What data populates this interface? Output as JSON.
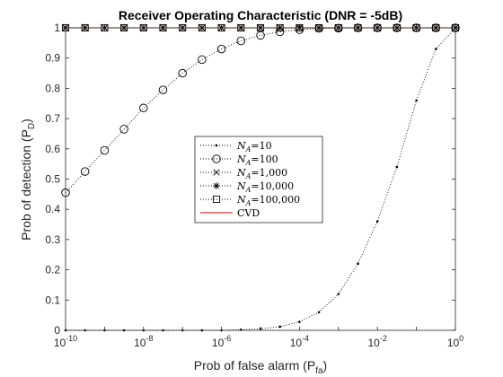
{
  "chart_data": {
    "type": "line",
    "title": "Receiver Operating Characteristic (DNR = -5dB)",
    "xlabel": "Prob of false alarm (P",
    "xlabel_sub": "fa",
    "xlabel_close": ")",
    "ylabel": "Prob of detection (P",
    "ylabel_sub": "D",
    "ylabel_close": ")",
    "xscale": "log",
    "xlim": [
      1e-10,
      1
    ],
    "ylim": [
      0,
      1
    ],
    "grid": false,
    "legend_position": "center",
    "x_tick_labels": [
      {
        "base": "10",
        "exp": "-10",
        "value": 1e-10
      },
      {
        "base": "10",
        "exp": "-8",
        "value": 1e-08
      },
      {
        "base": "10",
        "exp": "-6",
        "value": 1e-06
      },
      {
        "base": "10",
        "exp": "-4",
        "value": 0.0001
      },
      {
        "base": "10",
        "exp": "-2",
        "value": 0.01
      },
      {
        "base": "10",
        "exp": "0",
        "value": 1
      }
    ],
    "y_ticks": [
      "0",
      "0.1",
      "0.2",
      "0.3",
      "0.4",
      "0.5",
      "0.6",
      "0.7",
      "0.8",
      "0.9",
      "1"
    ],
    "series": [
      {
        "name_var": "N",
        "name_sub": "A",
        "name_value": "=10",
        "marker": "dot",
        "line": "dotted",
        "color": "#000000",
        "x": [
          1e-10,
          3.16e-10,
          1e-09,
          3.16e-09,
          1e-08,
          3.16e-08,
          1e-07,
          3.16e-07,
          1e-06,
          3.16e-06,
          1e-05,
          3.16e-05,
          0.0001,
          0.000316,
          0.001,
          0.00316,
          0.01,
          0.0316,
          0.1,
          0.316,
          1
        ],
        "y": [
          0.0,
          0.0,
          0.0,
          0.0,
          0.0,
          0.0,
          0.0,
          0.0,
          0.0,
          0.002,
          0.005,
          0.012,
          0.028,
          0.06,
          0.12,
          0.22,
          0.36,
          0.54,
          0.76,
          0.93,
          1.0
        ]
      },
      {
        "name_var": "N",
        "name_sub": "A",
        "name_value": "=100",
        "marker": "circle",
        "line": "dotted",
        "color": "#000000",
        "x": [
          1e-10,
          3.16e-10,
          1e-09,
          3.16e-09,
          1e-08,
          3.16e-08,
          1e-07,
          3.16e-07,
          1e-06,
          3.16e-06,
          1e-05,
          3.16e-05,
          0.0001,
          0.000316,
          0.001,
          0.00316,
          0.01,
          0.0316,
          0.1,
          0.316,
          1
        ],
        "y": [
          0.455,
          0.525,
          0.595,
          0.665,
          0.735,
          0.795,
          0.85,
          0.895,
          0.93,
          0.957,
          0.975,
          0.987,
          0.994,
          0.998,
          0.999,
          1.0,
          1.0,
          1.0,
          1.0,
          1.0,
          1.0
        ]
      },
      {
        "name_var": "N",
        "name_sub": "A",
        "name_value": "=1,000",
        "marker": "x",
        "line": "dotted",
        "color": "#000000",
        "x": [
          1e-10,
          3.16e-10,
          1e-09,
          3.16e-09,
          1e-08,
          3.16e-08,
          1e-07,
          3.16e-07,
          1e-06,
          3.16e-06,
          1e-05,
          3.16e-05,
          0.0001,
          0.000316,
          0.001,
          0.00316,
          0.01,
          0.0316,
          0.1,
          0.316,
          1
        ],
        "y": [
          1,
          1,
          1,
          1,
          1,
          1,
          1,
          1,
          1,
          1,
          1,
          1,
          1,
          1,
          1,
          1,
          1,
          1,
          1,
          1,
          1
        ]
      },
      {
        "name_var": "N",
        "name_sub": "A",
        "name_value": "=10,000",
        "marker": "asterisk",
        "line": "dotted",
        "color": "#000000",
        "x": [
          1e-10,
          3.16e-10,
          1e-09,
          3.16e-09,
          1e-08,
          3.16e-08,
          1e-07,
          3.16e-07,
          1e-06,
          3.16e-06,
          1e-05,
          3.16e-05,
          0.0001,
          0.000316,
          0.001,
          0.00316,
          0.01,
          0.0316,
          0.1,
          0.316,
          1
        ],
        "y": [
          1,
          1,
          1,
          1,
          1,
          1,
          1,
          1,
          1,
          1,
          1,
          1,
          1,
          1,
          1,
          1,
          1,
          1,
          1,
          1,
          1
        ]
      },
      {
        "name_var": "N",
        "name_sub": "A",
        "name_value": "=100,000",
        "marker": "square",
        "line": "dotted",
        "color": "#000000",
        "x": [
          1e-10,
          3.16e-10,
          1e-09,
          3.16e-09,
          1e-08,
          3.16e-08,
          1e-07,
          3.16e-07,
          1e-06,
          3.16e-06,
          1e-05,
          3.16e-05,
          0.0001,
          0.000316,
          0.001,
          0.00316,
          0.01,
          0.0316,
          0.1,
          0.316,
          1
        ],
        "y": [
          1,
          1,
          1,
          1,
          1,
          1,
          1,
          1,
          1,
          1,
          1,
          1,
          1,
          1,
          1,
          1,
          1,
          1,
          1,
          1,
          1
        ]
      },
      {
        "name": "CVD",
        "marker": "none",
        "line": "solid",
        "color": "#cc0000",
        "x": [
          1e-10,
          1
        ],
        "y": [
          1,
          1
        ]
      }
    ]
  }
}
